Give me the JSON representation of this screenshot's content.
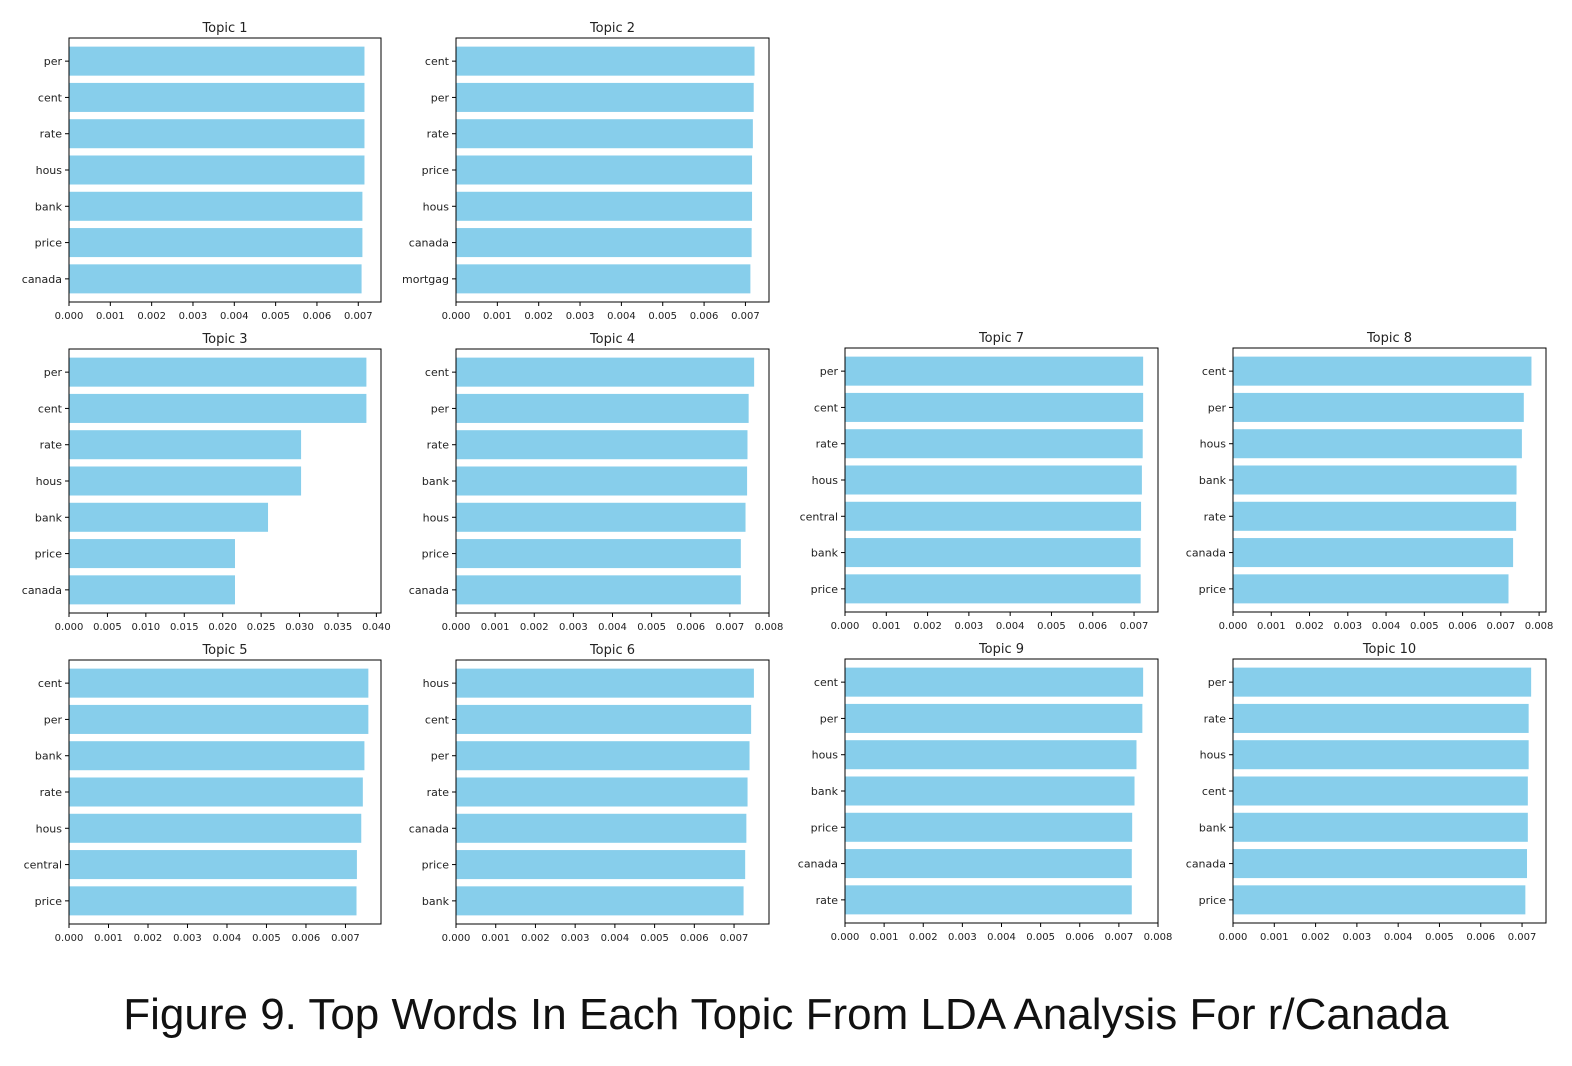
{
  "figure_caption": "Figure 9. Top Words In Each Topic From LDA Analysis For r/Canada",
  "colors": {
    "bar": "#87ceeb",
    "axis": "#000000"
  },
  "chart_data": [
    {
      "type": "bar",
      "orientation": "horizontal",
      "title": "Topic 1",
      "categories": [
        "per",
        "cent",
        "rate",
        "hous",
        "bank",
        "price",
        "canada"
      ],
      "values": [
        0.00715,
        0.00715,
        0.00715,
        0.00715,
        0.0071,
        0.0071,
        0.00708
      ],
      "xlim": [
        0,
        0.00755
      ],
      "xticks": [
        "0.000",
        "0.001",
        "0.002",
        "0.003",
        "0.004",
        "0.005",
        "0.006",
        "0.007"
      ]
    },
    {
      "type": "bar",
      "orientation": "horizontal",
      "title": "Topic 2",
      "categories": [
        "cent",
        "per",
        "rate",
        "price",
        "hous",
        "canada",
        "mortgag"
      ],
      "values": [
        0.00722,
        0.0072,
        0.00718,
        0.00716,
        0.00716,
        0.00715,
        0.00712
      ],
      "xlim": [
        0,
        0.00757
      ],
      "xticks": [
        "0.000",
        "0.001",
        "0.002",
        "0.003",
        "0.004",
        "0.005",
        "0.006",
        "0.007"
      ]
    },
    {
      "type": "bar",
      "orientation": "horizontal",
      "title": "Topic 3",
      "categories": [
        "per",
        "cent",
        "rate",
        "hous",
        "bank",
        "price",
        "canada"
      ],
      "values": [
        0.0387,
        0.0387,
        0.0302,
        0.0302,
        0.0259,
        0.0216,
        0.0216
      ],
      "xlim": [
        0,
        0.0406
      ],
      "xticks": [
        "0.000",
        "0.005",
        "0.010",
        "0.015",
        "0.020",
        "0.025",
        "0.030",
        "0.035",
        "0.040"
      ]
    },
    {
      "type": "bar",
      "orientation": "horizontal",
      "title": "Topic 4",
      "categories": [
        "cent",
        "per",
        "rate",
        "bank",
        "hous",
        "price",
        "canada"
      ],
      "values": [
        0.00762,
        0.00748,
        0.00745,
        0.00744,
        0.0074,
        0.00728,
        0.00728
      ],
      "xlim": [
        0,
        0.008
      ],
      "xticks": [
        "0.000",
        "0.001",
        "0.002",
        "0.003",
        "0.004",
        "0.005",
        "0.006",
        "0.007",
        "0.008"
      ]
    },
    {
      "type": "bar",
      "orientation": "horizontal",
      "title": "Topic 5",
      "categories": [
        "cent",
        "per",
        "bank",
        "rate",
        "hous",
        "central",
        "price"
      ],
      "values": [
        0.00758,
        0.00758,
        0.00748,
        0.00744,
        0.0074,
        0.00729,
        0.00728
      ],
      "xlim": [
        0,
        0.0079
      ],
      "xticks": [
        "0.000",
        "0.001",
        "0.002",
        "0.003",
        "0.004",
        "0.005",
        "0.006",
        "0.007"
      ]
    },
    {
      "type": "bar",
      "orientation": "horizontal",
      "title": "Topic 6",
      "categories": [
        "hous",
        "cent",
        "per",
        "rate",
        "canada",
        "price",
        "bank"
      ],
      "values": [
        0.0075,
        0.00743,
        0.00739,
        0.00734,
        0.00731,
        0.00728,
        0.00724
      ],
      "xlim": [
        0,
        0.00788
      ],
      "xticks": [
        "0.000",
        "0.001",
        "0.002",
        "0.003",
        "0.004",
        "0.005",
        "0.006",
        "0.007"
      ]
    },
    {
      "type": "bar",
      "orientation": "horizontal",
      "title": "Topic 7",
      "categories": [
        "per",
        "cent",
        "rate",
        "hous",
        "central",
        "bank",
        "price"
      ],
      "values": [
        0.00722,
        0.00722,
        0.00721,
        0.00719,
        0.00717,
        0.00716,
        0.00716
      ],
      "xlim": [
        0,
        0.00758
      ],
      "xticks": [
        "0.000",
        "0.001",
        "0.002",
        "0.003",
        "0.004",
        "0.005",
        "0.006",
        "0.007"
      ]
    },
    {
      "type": "bar",
      "orientation": "horizontal",
      "title": "Topic 8",
      "categories": [
        "cent",
        "per",
        "hous",
        "bank",
        "rate",
        "canada",
        "price"
      ],
      "values": [
        0.0078,
        0.0076,
        0.00755,
        0.00741,
        0.0074,
        0.00732,
        0.0072
      ],
      "xlim": [
        0,
        0.00818
      ],
      "xticks": [
        "0.000",
        "0.001",
        "0.002",
        "0.003",
        "0.004",
        "0.005",
        "0.006",
        "0.007",
        "0.008"
      ]
    },
    {
      "type": "bar",
      "orientation": "horizontal",
      "title": "Topic 9",
      "categories": [
        "cent",
        "per",
        "hous",
        "bank",
        "price",
        "canada",
        "rate"
      ],
      "values": [
        0.00762,
        0.0076,
        0.00745,
        0.0074,
        0.00734,
        0.00733,
        0.00733
      ],
      "xlim": [
        0,
        0.008
      ],
      "xticks": [
        "0.000",
        "0.001",
        "0.002",
        "0.003",
        "0.004",
        "0.005",
        "0.006",
        "0.007",
        "0.008"
      ]
    },
    {
      "type": "bar",
      "orientation": "horizontal",
      "title": "Topic 10",
      "categories": [
        "per",
        "rate",
        "hous",
        "cent",
        "bank",
        "canada",
        "price"
      ],
      "values": [
        0.00722,
        0.00716,
        0.00716,
        0.00714,
        0.00714,
        0.00712,
        0.00708
      ],
      "xlim": [
        0,
        0.00758
      ],
      "xticks": [
        "0.000",
        "0.001",
        "0.002",
        "0.003",
        "0.004",
        "0.005",
        "0.006",
        "0.007"
      ]
    }
  ]
}
